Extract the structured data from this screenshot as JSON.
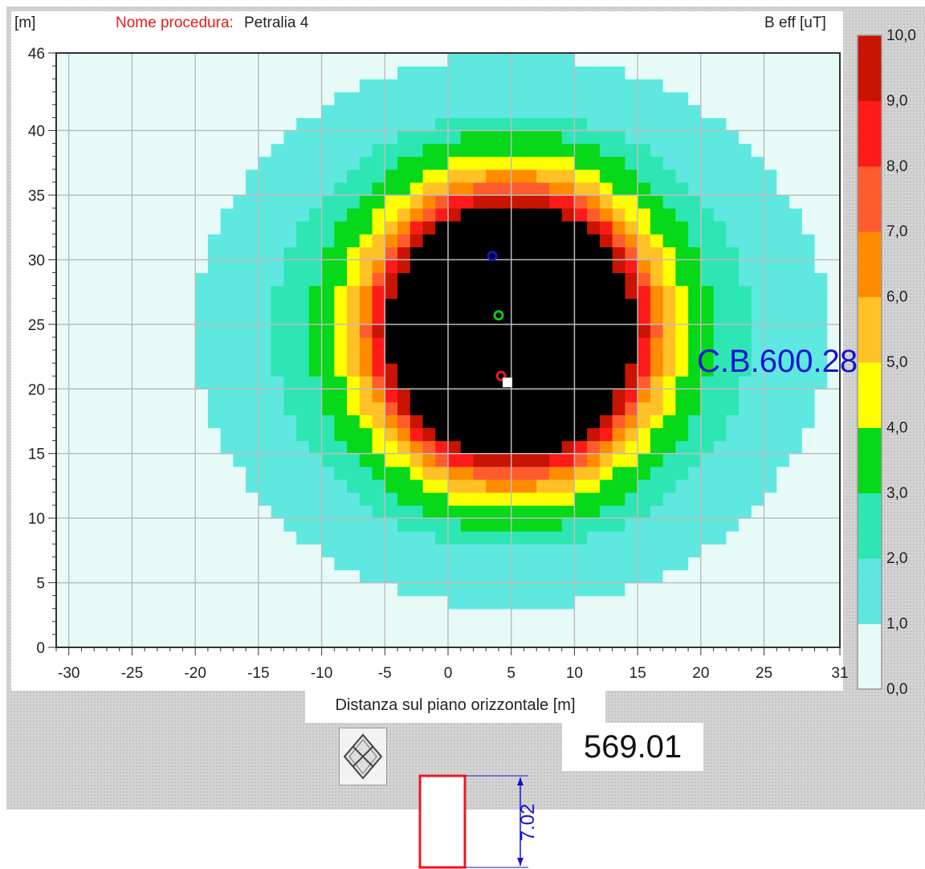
{
  "header": {
    "y_unit": "[m]",
    "procedure_label": "Nome procedura:",
    "procedure_name": "Petralia 4",
    "colorbar_title": "B eff [uT]"
  },
  "xlabel": "Distanza sul piano orizzontale [m]",
  "value_display": "569.01",
  "annotation": "C.B.600.28",
  "dimension_label": "7.02",
  "colors": {
    "accent_red": "#e8191e",
    "annotation_blue": "#1414d2",
    "grid": "#bdbdbd"
  },
  "chart_data": {
    "type": "heatmap",
    "xlabel": "Distanza sul piano orizzontale [m]",
    "ylabel": "[m]",
    "xlim": [
      -31,
      31
    ],
    "ylim": [
      0,
      46
    ],
    "x_ticks": [
      -30,
      -25,
      -20,
      -15,
      -10,
      -5,
      0,
      5,
      10,
      15,
      20,
      25,
      31
    ],
    "y_ticks": [
      0,
      5,
      10,
      15,
      20,
      25,
      30,
      35,
      40,
      46
    ],
    "grid": true,
    "colorbar": {
      "title": "B eff [uT]",
      "levels": [
        0.0,
        1.0,
        2.0,
        3.0,
        4.0,
        5.0,
        6.0,
        7.0,
        8.0,
        9.0,
        10.0
      ],
      "level_labels": [
        "0,0",
        "1,0",
        "2,0",
        "3,0",
        "4,0",
        "5,0",
        "6,0",
        "7,0",
        "8,0",
        "9,0",
        "10,0"
      ],
      "colors": [
        "#e6fbf8",
        "#5ee8e0",
        "#2ee6b4",
        "#06d81a",
        "#ffff00",
        "#ffc125",
        "#ff8c00",
        "#ff5c2e",
        "#ff1a1a",
        "#c81400"
      ],
      "over_color": "#000000"
    },
    "field_model": {
      "center": [
        5,
        24.5
      ],
      "radii_m": [
        [
          25.0,
          21.5,
          1.0
        ],
        [
          19.0,
          17.0,
          2.0
        ],
        [
          16.0,
          15.5,
          3.0
        ],
        [
          14.0,
          13.8,
          4.0
        ],
        [
          13.0,
          13.0,
          5.0
        ],
        [
          12.0,
          12.2,
          6.0
        ],
        [
          11.5,
          11.5,
          7.0
        ],
        [
          11.0,
          11.0,
          8.0
        ],
        [
          10.5,
          10.5,
          9.0
        ],
        [
          9.8,
          9.8,
          10.0
        ]
      ]
    },
    "markers": [
      {
        "name": "blue",
        "x": 3.5,
        "y": 30.3,
        "color": "#1414d2"
      },
      {
        "name": "green",
        "x": 4.0,
        "y": 25.7,
        "color": "#12c812"
      },
      {
        "name": "red",
        "x": 4.2,
        "y": 21.0,
        "color": "#e8191e"
      }
    ],
    "source_point": {
      "x": 4.7,
      "y": 20.5
    }
  }
}
